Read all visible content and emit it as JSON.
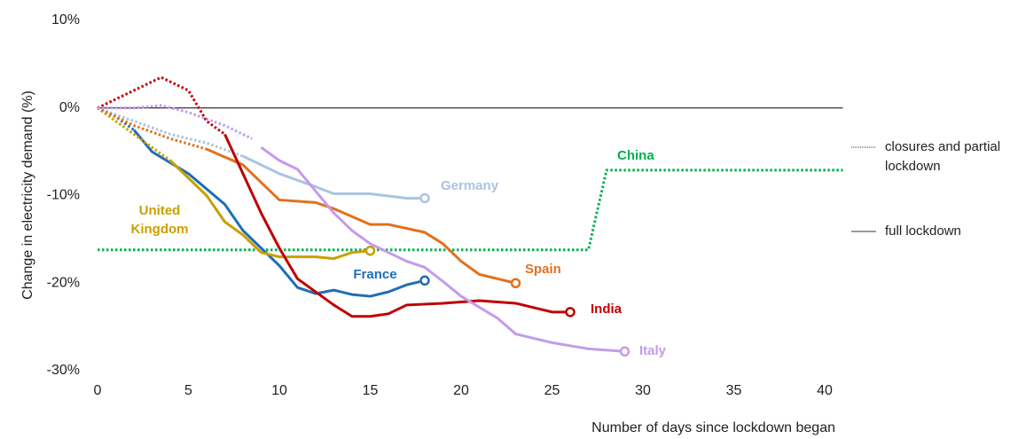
{
  "chart_data": {
    "type": "line",
    "y_label": "Change in electricity demand (%)",
    "x_label": "Number of days since lockdown began",
    "xlim": [
      0,
      41
    ],
    "ylim": [
      -30,
      10
    ],
    "xticks": [
      0,
      5,
      10,
      15,
      20,
      25,
      30,
      35,
      40
    ],
    "yticks": [
      {
        "value": 10,
        "label": "10%"
      },
      {
        "value": 0,
        "label": "0%"
      },
      {
        "value": -10,
        "label": "-10%"
      },
      {
        "value": -20,
        "label": "-20%"
      },
      {
        "value": -30,
        "label": "-30%"
      }
    ],
    "legend": [
      {
        "label": "closures and partial lockdown",
        "style": "dotted"
      },
      {
        "label": "full lockdown",
        "style": "solid"
      }
    ],
    "series": [
      {
        "name": "China",
        "color": "#00b050",
        "partial_x": [
          0,
          27,
          28,
          41
        ],
        "partial_values": [
          -16.2,
          -16.2,
          -7.1,
          -7.1
        ],
        "full_x": [],
        "full_values": []
      },
      {
        "name": "Germany",
        "color": "#a9c4e0",
        "partial_x": [
          0,
          2,
          4,
          6,
          8
        ],
        "partial_values": [
          0,
          -1.5,
          -3,
          -4,
          -5.5
        ],
        "full_x": [
          8,
          10,
          12,
          13,
          15,
          17,
          18
        ],
        "full_values": [
          -5.5,
          -7.5,
          -9,
          -9.8,
          -9.8,
          -10.3,
          -10.3
        ]
      },
      {
        "name": "France",
        "color": "#1f6eb5",
        "partial_x": [
          0,
          1,
          2
        ],
        "partial_values": [
          0,
          -1,
          -2.5
        ],
        "full_x": [
          2,
          3,
          5,
          7,
          8,
          10,
          11,
          12,
          13,
          14,
          15,
          16,
          17,
          18
        ],
        "full_values": [
          -2.5,
          -5,
          -7.5,
          -11,
          -14,
          -18,
          -20.5,
          -21.2,
          -20.8,
          -21.3,
          -21.5,
          -21,
          -20.2,
          -19.7
        ]
      },
      {
        "name": "United Kingdom",
        "color": "#c9a000",
        "partial_x": [
          0,
          2,
          4
        ],
        "partial_values": [
          0,
          -3,
          -6
        ],
        "full_x": [
          4,
          5,
          6,
          7,
          8,
          9,
          10,
          12,
          13,
          14,
          15
        ],
        "full_values": [
          -6,
          -8,
          -10,
          -13,
          -14.5,
          -16.5,
          -17,
          -17,
          -17.2,
          -16.5,
          -16.3
        ]
      },
      {
        "name": "Spain",
        "color": "#e2711d",
        "partial_x": [
          0,
          2,
          4,
          6
        ],
        "partial_values": [
          0,
          -2,
          -3.5,
          -4.7
        ],
        "full_x": [
          6,
          8,
          9,
          10,
          12,
          13,
          15,
          16,
          18,
          19,
          20,
          21,
          22,
          23
        ],
        "full_values": [
          -4.7,
          -6.5,
          -8.5,
          -10.5,
          -10.8,
          -11.5,
          -13.3,
          -13.3,
          -14.2,
          -15.5,
          -17.5,
          -19,
          -19.5,
          -20
        ]
      },
      {
        "name": "India",
        "color": "#c00000",
        "partial_x": [
          0,
          2,
          3.5,
          5,
          6,
          7
        ],
        "partial_values": [
          0,
          2,
          3.5,
          2,
          -1.5,
          -3
        ],
        "full_x": [
          7,
          8,
          9,
          10,
          11,
          13,
          14,
          15,
          16,
          17,
          19,
          21,
          23,
          25,
          26
        ],
        "full_values": [
          -3,
          -7.5,
          -12,
          -16,
          -19.5,
          -22.5,
          -23.8,
          -23.8,
          -23.5,
          -22.5,
          -22.3,
          -22,
          -22.3,
          -23.3,
          -23.3
        ]
      },
      {
        "name": "Italy",
        "color": "#c39bec",
        "partial_x": [
          0,
          2,
          3.5,
          5,
          7,
          8.5
        ],
        "partial_values": [
          0,
          0,
          0.3,
          -0.5,
          -2,
          -3.5
        ],
        "full_x": [
          9,
          10,
          11,
          12,
          13,
          14,
          15,
          16,
          17,
          18,
          19,
          20,
          22,
          23,
          25,
          27,
          29
        ],
        "full_values": [
          -4.5,
          -6,
          -7,
          -9.5,
          -12,
          -14,
          -15.5,
          -16.5,
          -17.5,
          -18.2,
          -19.8,
          -21.5,
          -24,
          -25.8,
          -26.8,
          -27.5,
          -27.8
        ]
      }
    ]
  }
}
